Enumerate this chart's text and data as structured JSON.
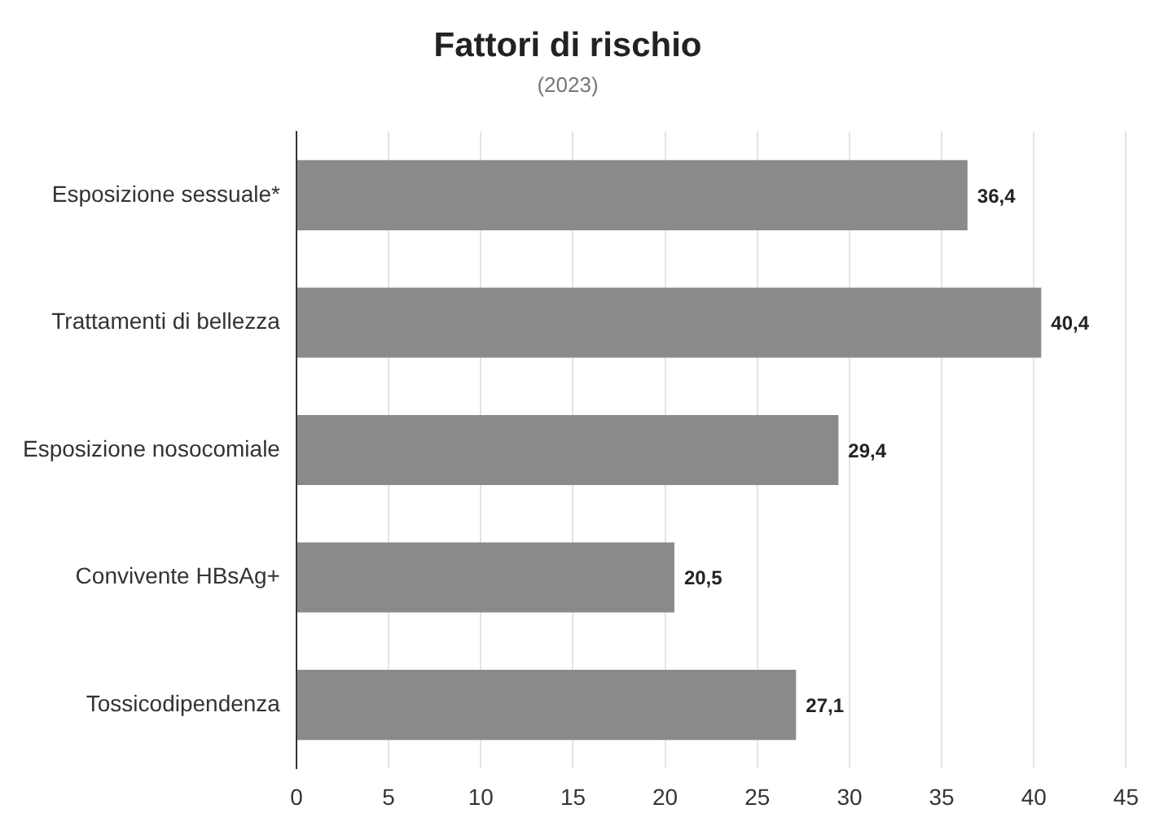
{
  "chart_data": {
    "type": "bar",
    "orientation": "horizontal",
    "title": "Fattori di rischio",
    "subtitle": "(2023)",
    "categories": [
      "Esposizione sessuale*",
      "Trattamenti di bellezza",
      "Esposizione nosocomiale",
      "Convivente HBsAg+",
      "Tossicodipendenza"
    ],
    "values": [
      36.4,
      40.4,
      29.4,
      20.5,
      27.1
    ],
    "value_labels": [
      "36,4",
      "40,4",
      "29,4",
      "20,5",
      "27,1"
    ],
    "color": "#8a8a8c",
    "xlim": [
      0,
      45
    ],
    "xticks": [
      0,
      5,
      10,
      15,
      20,
      25,
      30,
      35,
      40,
      45
    ],
    "grid": "x"
  }
}
